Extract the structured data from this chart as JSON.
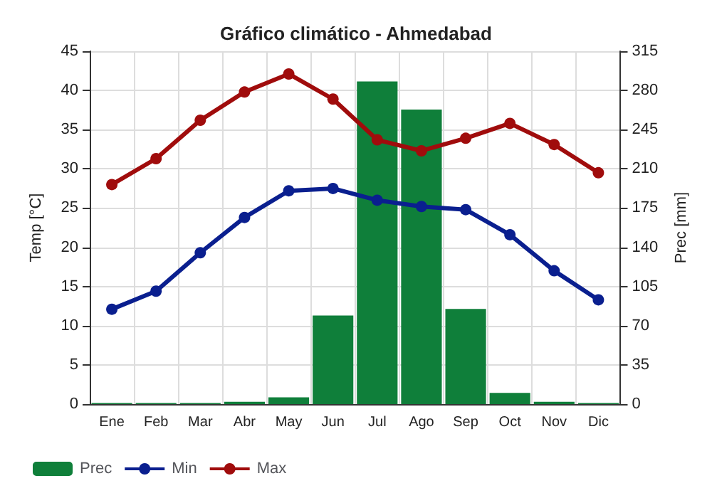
{
  "chart_data": {
    "type": "line",
    "title": "Gráfico climático - Ahmedabad",
    "ylabel": "Temp [°C]",
    "y2label": "Prec [mm]",
    "categories": [
      "Ene",
      "Feb",
      "Mar",
      "Abr",
      "May",
      "Jun",
      "Jul",
      "Ago",
      "Sep",
      "Oct",
      "Nov",
      "Dic"
    ],
    "series": [
      {
        "name": "Prec",
        "type": "bar",
        "axis": "y2",
        "color": "#0f7f3a",
        "values": [
          1,
          1,
          1,
          2,
          6,
          79,
          288,
          263,
          85,
          10,
          2,
          1
        ]
      },
      {
        "name": "Min",
        "color": "#0a1f8f",
        "values": [
          12.1,
          14.4,
          19.3,
          23.8,
          27.2,
          27.5,
          26,
          25.2,
          24.8,
          21.6,
          17,
          13.3
        ]
      },
      {
        "name": "Max",
        "color": "#a00c0c",
        "values": [
          28,
          31.3,
          36.2,
          39.8,
          42.1,
          38.9,
          33.7,
          32.3,
          33.9,
          35.8,
          33.1,
          29.5
        ]
      }
    ],
    "ylim": [
      0,
      45
    ],
    "yticks": [
      0,
      5,
      10,
      15,
      20,
      25,
      30,
      35,
      40,
      45
    ],
    "y2lim": [
      0,
      315
    ],
    "y2ticks": [
      0,
      35,
      70,
      105,
      140,
      175,
      210,
      245,
      280,
      315
    ],
    "grid": true,
    "legend": "bottom left",
    "marker": "circle",
    "line_style": "solid"
  }
}
